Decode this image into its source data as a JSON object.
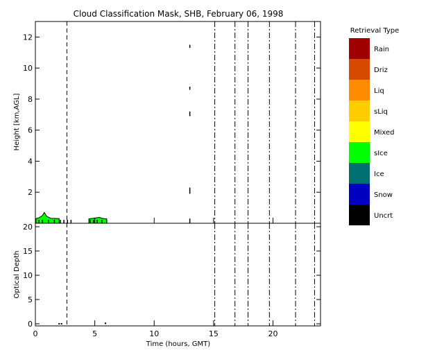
{
  "chart_data": [
    {
      "type": "mask",
      "title": "Cloud Classification Mask, SHB, February 06, 1998",
      "xlabel": "",
      "ylabel": "Height [km,AGL]",
      "xlim": [
        0,
        24
      ],
      "ylim": [
        0,
        13
      ],
      "y_ticks": [
        2,
        4,
        6,
        8,
        10,
        12
      ],
      "grid": false,
      "regions": [
        {
          "class": "sIce",
          "x0": 0.05,
          "x1": 2.0,
          "top": 0.3,
          "peaks": [
            [
              0.3,
              0.35
            ],
            [
              0.6,
              0.5
            ],
            [
              0.75,
              0.7
            ],
            [
              0.95,
              0.45
            ],
            [
              1.3,
              0.32
            ]
          ]
        },
        {
          "class": "sIce",
          "x0": 4.5,
          "x1": 6.0,
          "top": 0.28,
          "peaks": [
            [
              5.4,
              0.38
            ],
            [
              5.6,
              0.32
            ]
          ]
        }
      ],
      "uncertain_marks": [
        {
          "x": 13.0,
          "y0": 11.3,
          "y1": 11.5
        },
        {
          "x": 13.0,
          "y0": 8.6,
          "y1": 8.8
        },
        {
          "x": 13.0,
          "y0": 6.9,
          "y1": 7.2
        },
        {
          "x": 13.0,
          "y0": 1.9,
          "y1": 2.3
        },
        {
          "x": 13.0,
          "y0": 0.0,
          "y1": 0.3
        }
      ],
      "baseline_marks": [
        0.3,
        0.6,
        1.1,
        1.6,
        2.1,
        2.4,
        2.7,
        3.0,
        4.6,
        4.9,
        5.2,
        5.6,
        6.0
      ],
      "vertical_markers": {
        "dashed": [
          2.65
        ],
        "dashdot": [
          15.1,
          16.8,
          17.9,
          19.7,
          21.9,
          23.5
        ]
      }
    },
    {
      "type": "scatter",
      "title": "",
      "xlabel": "Time (hours, GMT)",
      "ylabel": "Optical Depth",
      "xlim": [
        0,
        24
      ],
      "ylim": [
        0,
        20
      ],
      "x_ticks": [
        0,
        5,
        10,
        15,
        20
      ],
      "y_ticks": [
        0,
        5,
        10,
        15,
        20
      ],
      "grid": false,
      "points": [
        {
          "x": 2.0,
          "y": 0.0
        },
        {
          "x": 2.2,
          "y": 0.0
        },
        {
          "x": 5.9,
          "y": 0.1
        }
      ],
      "vertical_markers": {
        "dashed": [
          2.65
        ],
        "dashdot": [
          15.1,
          16.8,
          17.9,
          19.7,
          21.9,
          23.5
        ]
      }
    }
  ],
  "legend": {
    "title": "Retrieval Type",
    "items": [
      {
        "label": "Rain",
        "color": "#a00000"
      },
      {
        "label": "Driz",
        "color": "#d84a00"
      },
      {
        "label": "Liq",
        "color": "#ff8c00"
      },
      {
        "label": "sLiq",
        "color": "#ffcc00"
      },
      {
        "label": "Mixed",
        "color": "#ffff00"
      },
      {
        "label": "sIce",
        "color": "#00ff00"
      },
      {
        "label": "Ice",
        "color": "#007070"
      },
      {
        "label": "Snow",
        "color": "#0000c0"
      },
      {
        "label": "Uncrt",
        "color": "#000000"
      }
    ]
  }
}
